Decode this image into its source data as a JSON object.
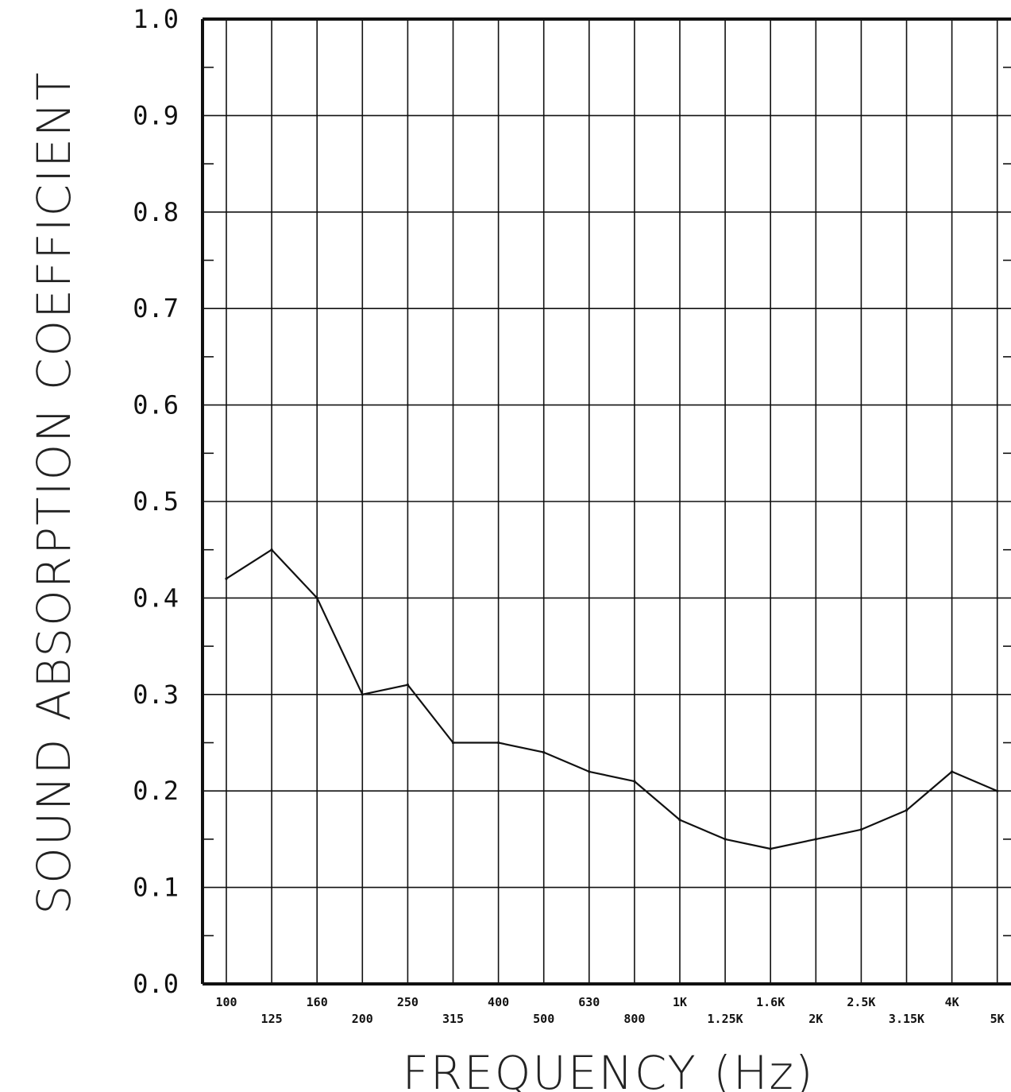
{
  "chart_data": {
    "type": "line",
    "xlabel": "FREQUENCY (Hz)",
    "ylabel": "SOUND ABSORPTION COEFFICIENT",
    "x_scale": "log (1/3-octave bands)",
    "ylim": [
      0.0,
      1.0
    ],
    "grid": true,
    "y_tick_labels": [
      "0.0",
      "0.1",
      "0.2",
      "0.3",
      "0.4",
      "0.5",
      "0.6",
      "0.7",
      "0.8",
      "0.9",
      "1.0"
    ],
    "categories": [
      "100",
      "125",
      "160",
      "200",
      "250",
      "315",
      "400",
      "500",
      "630",
      "800",
      "1K",
      "1.25K",
      "1.6K",
      "2K",
      "2.5K",
      "3.15K",
      "4K",
      "5K"
    ],
    "series": [
      {
        "values": [
          0.42,
          0.45,
          0.4,
          0.3,
          0.31,
          0.25,
          0.25,
          0.24,
          0.22,
          0.21,
          0.17,
          0.15,
          0.14,
          0.15,
          0.16,
          0.18,
          0.22,
          0.2
        ]
      }
    ],
    "colors": {
      "line": "#111111",
      "grid": "#111111",
      "background": "#ffffff"
    }
  }
}
